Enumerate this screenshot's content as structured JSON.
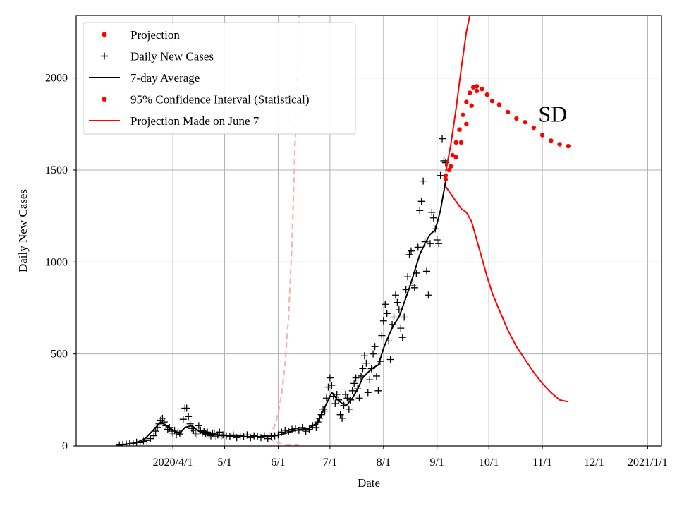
{
  "chart_data": {
    "type": "line",
    "title": "",
    "xlabel": "Date",
    "ylabel": "Daily New Cases",
    "xlim": [
      -25,
      314
    ],
    "ylim": [
      0,
      2340
    ],
    "grid": true,
    "legend_position": "top-left",
    "x_units": "days since 2020/3/1",
    "x_ticks": [
      {
        "label": "2020/4/1",
        "day": 31
      },
      {
        "label": "5/1",
        "day": 61
      },
      {
        "label": "6/1",
        "day": 92
      },
      {
        "label": "7/1",
        "day": 122
      },
      {
        "label": "8/1",
        "day": 153
      },
      {
        "label": "9/1",
        "day": 184
      },
      {
        "label": "10/1",
        "day": 214
      },
      {
        "label": "11/1",
        "day": 245
      },
      {
        "label": "12/1",
        "day": 275
      },
      {
        "label": "2021/1/1",
        "day": 306
      }
    ],
    "y_ticks": [
      0,
      500,
      1000,
      1500,
      2000
    ],
    "annotation": {
      "text": "SD",
      "day": 251,
      "value": 1790
    },
    "legend": [
      {
        "label": "Projection",
        "marker": "dot",
        "color": "#ff0000"
      },
      {
        "label": "Daily New Cases",
        "marker": "plus",
        "color": "#000000"
      },
      {
        "label": "7-day Average",
        "marker": "line",
        "color": "#000000"
      },
      {
        "label": "95% Confidence Interval (Statistical)",
        "marker": "dot",
        "color": "#ff0000"
      },
      {
        "label": "Projection Made on June 7",
        "marker": "line",
        "color": "#ff0000"
      }
    ],
    "colors": {
      "projection": "#ff0000",
      "cases": "#000000",
      "average": "#000000",
      "june7": "#ff0000",
      "june7_faded": "#f5b3b3",
      "grid": "#b0b0b0"
    },
    "series": [
      {
        "name": "Daily New Cases",
        "style": "plus",
        "points": [
          [
            0,
            5
          ],
          [
            2,
            8
          ],
          [
            4,
            10
          ],
          [
            6,
            12
          ],
          [
            8,
            15
          ],
          [
            10,
            20
          ],
          [
            12,
            18
          ],
          [
            14,
            25
          ],
          [
            16,
            30
          ],
          [
            18,
            40
          ],
          [
            20,
            55
          ],
          [
            21,
            80
          ],
          [
            22,
            100
          ],
          [
            23,
            120
          ],
          [
            24,
            140
          ],
          [
            25,
            150
          ],
          [
            26,
            130
          ],
          [
            27,
            110
          ],
          [
            28,
            90
          ],
          [
            29,
            100
          ],
          [
            30,
            80
          ],
          [
            31,
            70
          ],
          [
            32,
            85
          ],
          [
            33,
            60
          ],
          [
            34,
            75
          ],
          [
            35,
            65
          ],
          [
            37,
            145
          ],
          [
            38,
            205
          ],
          [
            39,
            205
          ],
          [
            40,
            160
          ],
          [
            41,
            120
          ],
          [
            42,
            95
          ],
          [
            43,
            85
          ],
          [
            44,
            70
          ],
          [
            45,
            60
          ],
          [
            46,
            110
          ],
          [
            47,
            85
          ],
          [
            48,
            70
          ],
          [
            49,
            80
          ],
          [
            50,
            65
          ],
          [
            51,
            75
          ],
          [
            52,
            60
          ],
          [
            53,
            55
          ],
          [
            54,
            70
          ],
          [
            55,
            65
          ],
          [
            56,
            50
          ],
          [
            57,
            60
          ],
          [
            58,
            75
          ],
          [
            59,
            55
          ],
          [
            60,
            60
          ],
          [
            62,
            55
          ],
          [
            64,
            50
          ],
          [
            66,
            60
          ],
          [
            68,
            45
          ],
          [
            70,
            55
          ],
          [
            72,
            50
          ],
          [
            74,
            60
          ],
          [
            76,
            45
          ],
          [
            78,
            55
          ],
          [
            80,
            50
          ],
          [
            82,
            45
          ],
          [
            84,
            55
          ],
          [
            86,
            40
          ],
          [
            88,
            50
          ],
          [
            90,
            55
          ],
          [
            92,
            60
          ],
          [
            94,
            75
          ],
          [
            96,
            85
          ],
          [
            98,
            80
          ],
          [
            100,
            90
          ],
          [
            102,
            95
          ],
          [
            104,
            85
          ],
          [
            106,
            100
          ],
          [
            108,
            80
          ],
          [
            110,
            90
          ],
          [
            112,
            110
          ],
          [
            114,
            100
          ],
          [
            115,
            130
          ],
          [
            116,
            150
          ],
          [
            117,
            170
          ],
          [
            118,
            200
          ],
          [
            119,
            190
          ],
          [
            120,
            260
          ],
          [
            121,
            320
          ],
          [
            122,
            370
          ],
          [
            123,
            330
          ],
          [
            124,
            270
          ],
          [
            125,
            230
          ],
          [
            126,
            280
          ],
          [
            127,
            250
          ],
          [
            128,
            170
          ],
          [
            129,
            150
          ],
          [
            130,
            220
          ],
          [
            131,
            280
          ],
          [
            132,
            260
          ],
          [
            133,
            200
          ],
          [
            134,
            250
          ],
          [
            135,
            300
          ],
          [
            136,
            340
          ],
          [
            137,
            370
          ],
          [
            138,
            310
          ],
          [
            139,
            260
          ],
          [
            140,
            380
          ],
          [
            141,
            420
          ],
          [
            142,
            490
          ],
          [
            143,
            450
          ],
          [
            144,
            290
          ],
          [
            145,
            360
          ],
          [
            146,
            420
          ],
          [
            147,
            500
          ],
          [
            148,
            540
          ],
          [
            149,
            380
          ],
          [
            150,
            300
          ],
          [
            151,
            460
          ],
          [
            152,
            600
          ],
          [
            153,
            680
          ],
          [
            154,
            770
          ],
          [
            155,
            720
          ],
          [
            156,
            570
          ],
          [
            157,
            470
          ],
          [
            158,
            660
          ],
          [
            159,
            700
          ],
          [
            160,
            820
          ],
          [
            161,
            780
          ],
          [
            162,
            740
          ],
          [
            163,
            640
          ],
          [
            164,
            590
          ],
          [
            165,
            700
          ],
          [
            166,
            850
          ],
          [
            167,
            920
          ],
          [
            168,
            1040
          ],
          [
            169,
            1060
          ],
          [
            170,
            870
          ],
          [
            171,
            860
          ],
          [
            172,
            940
          ],
          [
            173,
            1080
          ],
          [
            174,
            1280
          ],
          [
            175,
            1330
          ],
          [
            176,
            1440
          ],
          [
            177,
            1110
          ],
          [
            178,
            950
          ],
          [
            179,
            820
          ],
          [
            180,
            1100
          ],
          [
            181,
            1270
          ],
          [
            182,
            1240
          ],
          [
            183,
            1180
          ],
          [
            184,
            1120
          ],
          [
            185,
            1100
          ],
          [
            186,
            1470
          ],
          [
            187,
            1670
          ],
          [
            188,
            1550
          ],
          [
            189,
            1540
          ]
        ]
      },
      {
        "name": "7-day Average",
        "style": "line",
        "points": [
          [
            0,
            5
          ],
          [
            5,
            10
          ],
          [
            10,
            18
          ],
          [
            15,
            40
          ],
          [
            20,
            90
          ],
          [
            24,
            130
          ],
          [
            28,
            105
          ],
          [
            32,
            80
          ],
          [
            35,
            70
          ],
          [
            38,
            100
          ],
          [
            42,
            110
          ],
          [
            46,
            80
          ],
          [
            50,
            70
          ],
          [
            55,
            60
          ],
          [
            60,
            58
          ],
          [
            65,
            55
          ],
          [
            70,
            52
          ],
          [
            75,
            50
          ],
          [
            80,
            50
          ],
          [
            85,
            52
          ],
          [
            90,
            55
          ],
          [
            95,
            65
          ],
          [
            100,
            80
          ],
          [
            105,
            90
          ],
          [
            110,
            95
          ],
          [
            115,
            130
          ],
          [
            120,
            230
          ],
          [
            123,
            290
          ],
          [
            126,
            255
          ],
          [
            129,
            230
          ],
          [
            132,
            225
          ],
          [
            135,
            260
          ],
          [
            138,
            310
          ],
          [
            141,
            370
          ],
          [
            144,
            400
          ],
          [
            147,
            425
          ],
          [
            150,
            440
          ],
          [
            153,
            530
          ],
          [
            156,
            600
          ],
          [
            159,
            660
          ],
          [
            162,
            700
          ],
          [
            165,
            780
          ],
          [
            168,
            860
          ],
          [
            171,
            950
          ],
          [
            174,
            1040
          ],
          [
            177,
            1100
          ],
          [
            180,
            1150
          ],
          [
            183,
            1175
          ],
          [
            186,
            1280
          ],
          [
            189,
            1440
          ]
        ]
      },
      {
        "name": "Projection",
        "style": "dots",
        "points": [
          [
            189,
            1450
          ],
          [
            191,
            1500
          ],
          [
            193,
            1580
          ],
          [
            195,
            1650
          ],
          [
            197,
            1720
          ],
          [
            199,
            1800
          ],
          [
            201,
            1870
          ],
          [
            203,
            1920
          ],
          [
            205,
            1950
          ],
          [
            207,
            1955
          ],
          [
            210,
            1940
          ],
          [
            213,
            1910
          ],
          [
            216,
            1875
          ],
          [
            220,
            1855
          ],
          [
            225,
            1815
          ],
          [
            230,
            1780
          ],
          [
            235,
            1760
          ],
          [
            240,
            1730
          ],
          [
            245,
            1690
          ],
          [
            250,
            1660
          ],
          [
            255,
            1640
          ],
          [
            260,
            1630
          ]
        ]
      },
      {
        "name": "95% Confidence Interval (Statistical)",
        "style": "dots",
        "points": [
          [
            189,
            1470
          ],
          [
            192,
            1520
          ],
          [
            195,
            1570
          ],
          [
            198,
            1650
          ],
          [
            201,
            1750
          ],
          [
            204,
            1850
          ],
          [
            207,
            1930
          ]
        ]
      },
      {
        "name": "Projection Made on June 7",
        "style": "line",
        "points": [
          [
            189,
            1410
          ],
          [
            192,
            1370
          ],
          [
            195,
            1330
          ],
          [
            198,
            1290
          ],
          [
            201,
            1270
          ],
          [
            204,
            1220
          ],
          [
            207,
            1120
          ],
          [
            210,
            1020
          ],
          [
            213,
            920
          ],
          [
            216,
            830
          ],
          [
            220,
            740
          ],
          [
            225,
            630
          ],
          [
            230,
            540
          ],
          [
            235,
            470
          ],
          [
            240,
            400
          ],
          [
            245,
            340
          ],
          [
            250,
            290
          ],
          [
            255,
            250
          ],
          [
            260,
            240
          ]
        ]
      },
      {
        "name": "Upper Bound",
        "style": "line",
        "points": [
          [
            189,
            1490
          ],
          [
            192,
            1640
          ],
          [
            195,
            1830
          ],
          [
            198,
            2050
          ],
          [
            201,
            2250
          ],
          [
            203,
            2340
          ]
        ]
      },
      {
        "name": "June 7 Projection (faded, upper)",
        "style": "dashed",
        "points": [
          [
            86,
            50
          ],
          [
            88,
            75
          ],
          [
            90,
            110
          ],
          [
            92,
            180
          ],
          [
            94,
            280
          ],
          [
            96,
            450
          ],
          [
            98,
            700
          ],
          [
            100,
            1100
          ],
          [
            102,
            1700
          ],
          [
            104,
            2340
          ]
        ]
      },
      {
        "name": "June 7 Projection (faded, lower)",
        "style": "dashed",
        "points": [
          [
            86,
            40
          ],
          [
            90,
            25
          ],
          [
            94,
            10
          ],
          [
            98,
            5
          ],
          [
            104,
            3
          ]
        ]
      }
    ]
  }
}
